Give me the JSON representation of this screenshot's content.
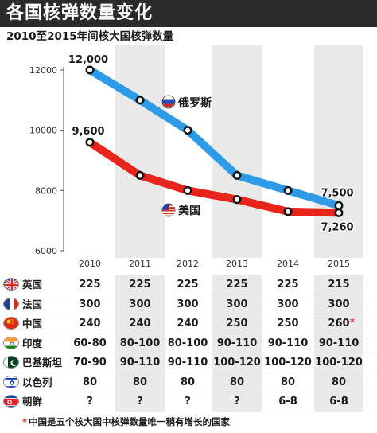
{
  "title": "各国核弹数量变化",
  "subtitle": "2010至2015年间核大国核弹数量",
  "chart_data": {
    "type": "line",
    "x": [
      "2010",
      "2011",
      "2012",
      "2013",
      "2014",
      "2015"
    ],
    "ylim": [
      6000,
      12000
    ],
    "yticks": [
      6000,
      8000,
      10000,
      12000
    ],
    "ytick_labels": [
      "6000",
      "8000",
      "10000",
      "12000"
    ],
    "grid": "alternating vertical column bands",
    "series": [
      {
        "name": "俄罗斯",
        "color": "#2e9be8",
        "values": [
          12000,
          11000,
          10000,
          8500,
          8000,
          7500
        ],
        "labels": {
          "first": "12,000",
          "last": "7,500"
        }
      },
      {
        "name": "美国",
        "color": "#e8241c",
        "values": [
          9600,
          8500,
          8000,
          7700,
          7300,
          7260
        ],
        "labels": {
          "first": "9,600",
          "last": "7,260"
        }
      }
    ]
  },
  "table": {
    "rows": [
      {
        "country": "英国",
        "flag": "uk-flag-icon",
        "values": [
          "225",
          "225",
          "225",
          "225",
          "225",
          "215"
        ]
      },
      {
        "country": "法国",
        "flag": "france-flag-icon",
        "values": [
          "300",
          "300",
          "300",
          "300",
          "300",
          "300"
        ]
      },
      {
        "country": "中国",
        "flag": "china-flag-icon",
        "values": [
          "240",
          "240",
          "240",
          "250",
          "250",
          "260"
        ],
        "note_mark": "*"
      },
      {
        "country": "印度",
        "flag": "india-flag-icon",
        "values": [
          "60-80",
          "80-100",
          "80-100",
          "90-110",
          "90-110",
          "90-110"
        ]
      },
      {
        "country": "巴基斯坦",
        "flag": "pakistan-flag-icon",
        "values": [
          "70-90",
          "90-110",
          "90-110",
          "100-120",
          "100-120",
          "100-120"
        ]
      },
      {
        "country": "以色列",
        "flag": "israel-flag-icon",
        "values": [
          "80",
          "80",
          "80",
          "80",
          "80",
          "80"
        ]
      },
      {
        "country": "朝鲜",
        "flag": "north-korea-flag-icon",
        "values": [
          "?",
          "?",
          "?",
          "?",
          "6-8",
          "6-8"
        ]
      }
    ]
  },
  "footnote": {
    "mark": "*",
    "text": "中国是五个核大国中核弹数量唯一稍有增长的国家"
  },
  "colors": {
    "russia_line": "#2e9be8",
    "us_line": "#e8241c",
    "band": "#e9e9e9",
    "title_bar": "#2b2b2b",
    "note_red": "#d7261e"
  }
}
